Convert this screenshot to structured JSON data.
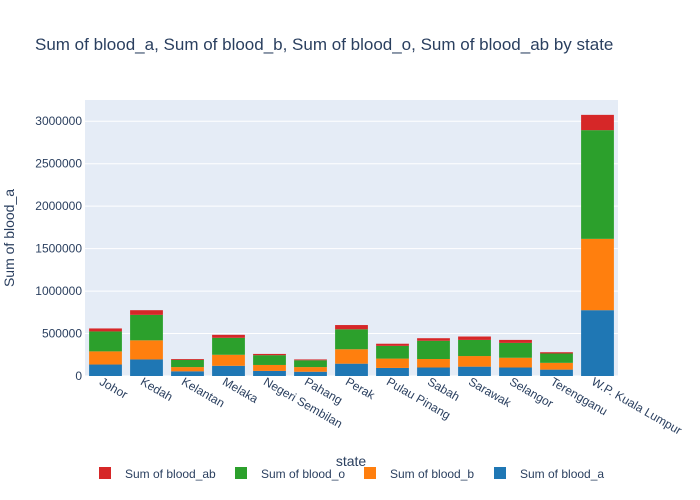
{
  "chart_data": {
    "type": "bar",
    "stacked": true,
    "title": "Sum of blood_a, Sum of blood_b, Sum of blood_o, Sum of blood_ab by state",
    "xlabel": "state",
    "ylabel": "Sum of blood_a",
    "ylim": [
      0,
      3250000
    ],
    "yticks": [
      0,
      500000,
      1000000,
      1500000,
      2000000,
      2500000,
      3000000
    ],
    "ytick_labels": [
      "0",
      "500000",
      "1000000",
      "1500000",
      "2000000",
      "2500000",
      "3000000"
    ],
    "grid": true,
    "legend_position": "bottom",
    "categories": [
      "Johor",
      "Kedah",
      "Kelantan",
      "Melaka",
      "Negeri Sembilan",
      "Pahang",
      "Perak",
      "Pulau Pinang",
      "Sabah",
      "Sarawak",
      "Selangor",
      "Terengganu",
      "W.P. Kuala Lumpur"
    ],
    "series": [
      {
        "name": "Sum of blood_a",
        "color": "#1f77b4",
        "values": [
          135000,
          195000,
          55000,
          120000,
          60000,
          50000,
          145000,
          95000,
          100000,
          110000,
          100000,
          75000,
          775000
        ]
      },
      {
        "name": "Sum of blood_b",
        "color": "#ff7f0e",
        "values": [
          155000,
          225000,
          50000,
          130000,
          70000,
          55000,
          170000,
          110000,
          100000,
          125000,
          115000,
          80000,
          840000
        ]
      },
      {
        "name": "Sum of blood_o",
        "color": "#2ca02c",
        "values": [
          235000,
          300000,
          85000,
          200000,
          115000,
          80000,
          235000,
          150000,
          215000,
          190000,
          175000,
          110000,
          1280000
        ]
      },
      {
        "name": "Sum of blood_ab",
        "color": "#d62728",
        "values": [
          35000,
          55000,
          10000,
          35000,
          15000,
          10000,
          50000,
          25000,
          30000,
          40000,
          35000,
          15000,
          180000
        ]
      }
    ],
    "legend_order": [
      "Sum of blood_ab",
      "Sum of blood_o",
      "Sum of blood_b",
      "Sum of blood_a"
    ]
  }
}
